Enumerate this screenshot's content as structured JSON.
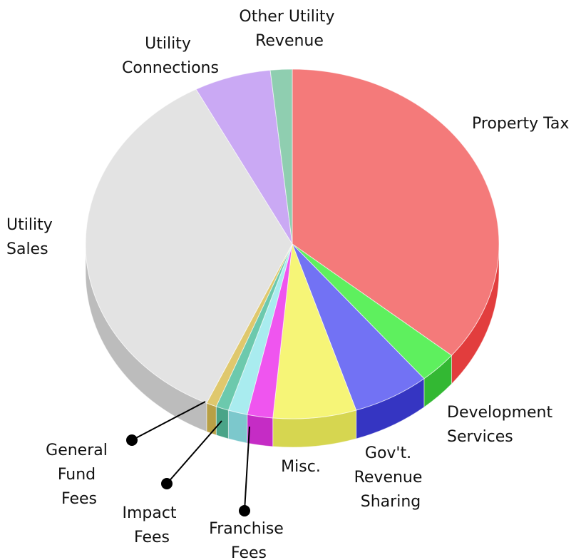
{
  "chart_data": {
    "type": "pie",
    "style": "3d",
    "slices": [
      {
        "label": "Property Tax",
        "value": 36.0,
        "color": "#f47a7a",
        "side": "#e23d3d"
      },
      {
        "label": "Development Services",
        "value": 3.0,
        "color": "#5ef05e",
        "side": "#33b833"
      },
      {
        "label": "Gov't. Revenue Sharing",
        "value": 6.0,
        "color": "#7272f4",
        "side": "#3535c2"
      },
      {
        "label": "Misc.",
        "value": 6.5,
        "color": "#f6f577",
        "side": "#d6d650"
      },
      {
        "label": "Franchise Fees",
        "value": 2.0,
        "color": "#ef55ef",
        "side": "#c52cc5"
      },
      {
        "label": "Impact Fees",
        "value": 1.5,
        "color": "#a9ecef",
        "side": "#7cc8cc"
      },
      {
        "label": "General Fund Fees (teal)",
        "value": 1.0,
        "color": "#6cc9ad",
        "side": "#4aa488"
      },
      {
        "label": "General Fund Fees",
        "value": 0.8,
        "color": "#dfc86d",
        "side": "#b8a046"
      },
      {
        "label": "Utility Sales",
        "value": 35.5,
        "color": "#e3e3e3",
        "side": "#bcbcbc"
      },
      {
        "label": "Utility Connections",
        "value": 6.0,
        "color": "#caa9f4",
        "side": "#a07acf"
      },
      {
        "label": "Other Utility Revenue",
        "value": 1.7,
        "color": "#8fceb0",
        "side": "#5fa584"
      }
    ],
    "labels": {
      "property_tax": [
        "Property Tax"
      ],
      "development_services": [
        "Development",
        "Services"
      ],
      "govt_revenue_sharing": [
        "Gov't.",
        "Revenue",
        "Sharing"
      ],
      "misc": [
        "Misc."
      ],
      "franchise_fees": [
        "Franchise",
        "Fees"
      ],
      "impact_fees": [
        "Impact",
        "Fees"
      ],
      "general_fund_fees": [
        "General",
        "Fund",
        "Fees"
      ],
      "utility_sales": [
        "Utility",
        "Sales"
      ],
      "utility_connections": [
        "Utility",
        "Connections"
      ],
      "other_utility_revenue": [
        "Other Utility",
        "Revenue"
      ]
    }
  }
}
